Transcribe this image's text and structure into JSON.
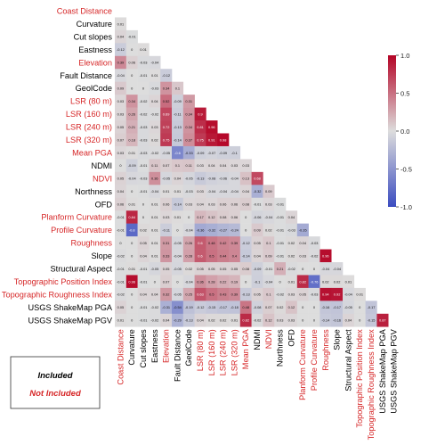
{
  "chart_data": {
    "type": "heatmap",
    "variables": [
      {
        "name": "Coast Distance",
        "included": false
      },
      {
        "name": "Curvature",
        "included": true
      },
      {
        "name": "Cut slopes",
        "included": true
      },
      {
        "name": "Eastness",
        "included": true
      },
      {
        "name": "Elevation",
        "included": false
      },
      {
        "name": "Fault Distance",
        "included": true
      },
      {
        "name": "GeolCode",
        "included": true
      },
      {
        "name": "LSR (80 m)",
        "included": false
      },
      {
        "name": "LSR (160 m)",
        "included": false
      },
      {
        "name": "LSR (240 m)",
        "included": false
      },
      {
        "name": "LSR (320 m)",
        "included": false
      },
      {
        "name": "Mean PGA",
        "included": false
      },
      {
        "name": "NDMI",
        "included": true
      },
      {
        "name": "NDVI",
        "included": false
      },
      {
        "name": "Northness",
        "included": true
      },
      {
        "name": "OFD",
        "included": true
      },
      {
        "name": "Planform Curvature",
        "included": false
      },
      {
        "name": "Profile Curvature",
        "included": false
      },
      {
        "name": "Roughness",
        "included": false
      },
      {
        "name": "Slope",
        "included": true
      },
      {
        "name": "Structural Aspect",
        "included": true
      },
      {
        "name": "Topographic Position Index",
        "included": false
      },
      {
        "name": "Topographic Roughness Index",
        "included": false
      },
      {
        "name": "USGS ShakeMap PGA",
        "included": true
      },
      {
        "name": "USGS ShakeMap PGV",
        "included": true
      }
    ],
    "lower_triangle": [
      [],
      [
        0.01
      ],
      [
        0.04,
        -0.01
      ],
      [
        -0.12,
        0,
        0.01
      ],
      [
        0.39,
        0.06,
        -0.03,
        -0.04
      ],
      [
        -0.04,
        0,
        -0.01,
        0.01,
        -0.12
      ],
      [
        0.09,
        -0.0,
        0,
        -0.03,
        0.34,
        0.1
      ],
      [
        0.03,
        0.34,
        -0.02,
        0.04,
        0.52,
        -0.09,
        0.31
      ],
      [
        0.03,
        0.26,
        -0.02,
        -0.02,
        0.69,
        -0.11,
        0.34,
        0.9
      ],
      [
        0.05,
        0.21,
        -0.03,
        0.03,
        0.72,
        -0.13,
        0.34,
        0.81,
        0.96
      ],
      [
        0.07,
        0.18,
        -0.03,
        0.02,
        0.75,
        -0.14,
        0.37,
        0.75,
        0.91,
        0.98
      ],
      [
        0.03,
        0.01,
        -0.03,
        -0.02,
        -0.05,
        -0.6,
        -0.33,
        -0.09,
        -0.07,
        -0.09,
        -0.1
      ],
      [
        0,
        -0.09,
        -0.01,
        0.11,
        0.07,
        0.1,
        0.11,
        0.03,
        0.04,
        0.04,
        0.03,
        0.03
      ],
      [
        0.05,
        -0.04,
        -0.03,
        0.36,
        -0.05,
        0.04,
        -0.05,
        -0.13,
        -0.08,
        -0.06,
        -0.04,
        0.13,
        0.68
      ],
      [
        0.04,
        0,
        -0.01,
        -0.04,
        0.01,
        0.01,
        -0.03,
        0.03,
        -0.04,
        -0.04,
        -0.04,
        0.04,
        -0.32,
        0.09
      ],
      [
        0.06,
        0.01,
        0,
        0.01,
        0.06,
        -0.14,
        0.03,
        0.04,
        0.03,
        0.06,
        0.06,
        0.08,
        -0.01,
        0.03,
        -0.01
      ],
      [
        -0.01,
        0.84,
        0,
        0.01,
        0.03,
        0.01,
        0,
        0.17,
        0.12,
        0.08,
        0.06,
        0,
        -0.06,
        -0.04,
        -0.01,
        0.04
      ],
      [
        -0.01,
        -0.8,
        0.02,
        0.01,
        -0.11,
        0,
        -0.04,
        -0.36,
        -0.32,
        -0.27,
        -0.24,
        0,
        0.09,
        0.02,
        -0.01,
        -0.03,
        -0.35
      ],
      [
        0,
        0,
        0.05,
        0.01,
        0.31,
        -0.05,
        0.26,
        0.6,
        0.48,
        0.42,
        0.39,
        -0.12,
        0.05,
        0.1,
        -0.01,
        0.02,
        0.04,
        -0.03
      ],
      [
        -0.02,
        0,
        0.04,
        0.01,
        0.33,
        -0.04,
        0.28,
        0.6,
        0.5,
        0.44,
        0.4,
        -0.14,
        0.04,
        0.09,
        -0.01,
        0.02,
        0.03,
        -0.02,
        0.96
      ],
      [
        -0.01,
        0.01,
        -0.01,
        -0.05,
        0.05,
        -0.05,
        0.02,
        0.05,
        0.05,
        0.05,
        0.05,
        0.08,
        -0.09,
        -0.01,
        0.21,
        -0.02,
        0,
        0,
        -0.04,
        -0.04
      ],
      [
        -0.01,
        0.96,
        -0.01,
        0,
        0.07,
        0,
        -0.04,
        0.36,
        0.28,
        0.22,
        0.19,
        0,
        -0.1,
        -0.04,
        0,
        0.01,
        0.82,
        -0.76,
        0.02,
        0.02,
        0.01
      ],
      [
        -0.02,
        0,
        0.04,
        0.04,
        0.32,
        -0.05,
        0.25,
        0.63,
        0.5,
        0.43,
        0.39,
        -0.13,
        0.05,
        0.1,
        -0.02,
        0.03,
        0.05,
        -0.03,
        0.94,
        0.92,
        -0.04,
        0.01
      ],
      [
        0.05,
        0,
        -0.01,
        -0.02,
        -0.31,
        -0.54,
        -0.19,
        -0.12,
        -0.15,
        -0.17,
        -0.18,
        0.48,
        -0.08,
        0.07,
        0.02,
        0.12,
        0,
        0,
        -0.16,
        -0.17,
        -0.05,
        0,
        -0.17
      ],
      [
        0.01,
        0,
        -0.01,
        -0.02,
        0.04,
        -0.29,
        -0.13,
        0.04,
        0.02,
        0.02,
        0.01,
        0.82,
        -0.02,
        0.12,
        0.03,
        0.03,
        0,
        0,
        -0.14,
        -0.16,
        0.04,
        0,
        -0.15,
        0.87
      ]
    ],
    "colorbar": {
      "min": -1.0,
      "max": 1.0,
      "ticks": [
        "1.0",
        "0.5",
        "0.0",
        "-0.5",
        "-1.0"
      ]
    },
    "legend": {
      "included_label": "Included",
      "not_included_label": "Not Included"
    },
    "colors": {
      "included": "#000000",
      "not_included": "#d62728",
      "positive": "#b40426",
      "negative": "#3b4cc0",
      "neutral": "#dddddd"
    }
  }
}
